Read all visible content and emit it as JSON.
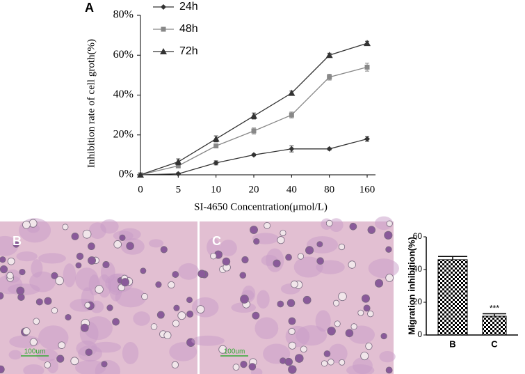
{
  "chart_data": [
    {
      "type": "line",
      "panel_label": "A",
      "x_label": "SI-4650 Concentration(μmol/L)",
      "y_label": "Inhibition rate of cell groth(%)",
      "categories": [
        "0",
        "5",
        "10",
        "20",
        "40",
        "80",
        "160"
      ],
      "ylim": [
        0,
        80
      ],
      "yticks": [
        {
          "value": 0,
          "label": "0%"
        },
        {
          "value": 20,
          "label": "20%"
        },
        {
          "value": 40,
          "label": "40%"
        },
        {
          "value": 60,
          "label": "60%"
        },
        {
          "value": 80,
          "label": "80%"
        }
      ],
      "legend": "top-left",
      "series": [
        {
          "name": "24h",
          "color": "#333333",
          "marker": "diamond",
          "values": [
            0,
            0.5,
            6,
            10,
            13,
            13,
            18
          ],
          "errors": [
            0,
            0.5,
            1,
            0.5,
            1.5,
            0.5,
            1.2
          ]
        },
        {
          "name": "48h",
          "color": "#888888",
          "marker": "square",
          "values": [
            0,
            4.5,
            14.5,
            22,
            30,
            49,
            54
          ],
          "errors": [
            0,
            1,
            1,
            1.5,
            1.5,
            1.5,
            2
          ]
        },
        {
          "name": "72h",
          "color": "#333333",
          "marker": "triangle",
          "values": [
            0,
            6.5,
            18,
            29.5,
            41,
            60,
            66
          ],
          "errors": [
            0,
            1.5,
            1.5,
            1.5,
            1,
            1,
            1
          ]
        }
      ]
    },
    {
      "type": "bar",
      "y_label": "Migration inhibition(%)",
      "categories": [
        "B",
        "C"
      ],
      "values": [
        46,
        11.5
      ],
      "errors": [
        2,
        1.5
      ],
      "color": "#000000",
      "annotations": [
        null,
        "***"
      ],
      "ylim": [
        0,
        60
      ],
      "yticks": [
        0,
        20,
        40,
        60
      ]
    }
  ],
  "images": [
    {
      "label": "B",
      "scale_bar": "100um"
    },
    {
      "label": "C",
      "scale_bar": "100um"
    }
  ]
}
